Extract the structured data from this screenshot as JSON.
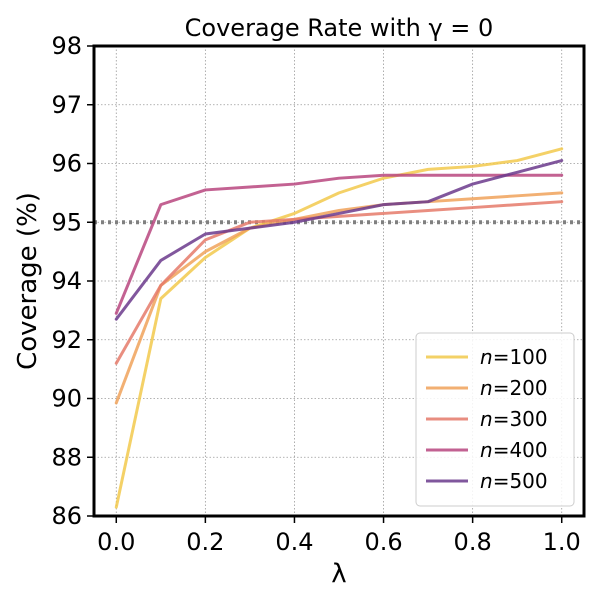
{
  "chart_data": {
    "type": "line",
    "title": "Coverage Rate with γ = 0",
    "xlabel": "λ",
    "ylabel": "Coverage (%)",
    "xlim": [
      -0.05,
      1.05
    ],
    "x_ticks": [
      0.0,
      0.2,
      0.4,
      0.6,
      0.8,
      1.0
    ],
    "x_tick_labels": [
      "0.0",
      "0.2",
      "0.4",
      "0.6",
      "0.8",
      "1.0"
    ],
    "y_ticks": [
      86,
      88,
      90,
      92,
      94,
      95,
      96,
      97,
      98
    ],
    "y_tick_labels": [
      "86",
      "88",
      "90",
      "92",
      "94",
      "95",
      "96",
      "97",
      "98"
    ],
    "grid": true,
    "reference_line": {
      "y": 95,
      "style": "dotted",
      "color": "#808080"
    },
    "legend": {
      "position": "lower-right",
      "prefix": "n",
      "sep": "="
    },
    "x": [
      0.0,
      0.1,
      0.2,
      0.3,
      0.4,
      0.5,
      0.6,
      0.7,
      0.8,
      0.9,
      1.0
    ],
    "series": [
      {
        "name": "100",
        "color": "#f2c94c",
        "values": [
          86.3,
          93.4,
          94.4,
          94.9,
          95.15,
          95.5,
          95.75,
          95.9,
          95.95,
          96.05,
          96.25
        ]
      },
      {
        "name": "200",
        "color": "#f0a25a",
        "values": [
          89.85,
          93.85,
          94.5,
          94.9,
          95.05,
          95.2,
          95.3,
          95.35,
          95.4,
          95.45,
          95.5
        ]
      },
      {
        "name": "300",
        "color": "#e57a6a",
        "values": [
          91.2,
          93.85,
          94.7,
          95.0,
          95.05,
          95.1,
          95.15,
          95.2,
          95.25,
          95.3,
          95.35
        ]
      },
      {
        "name": "400",
        "color": "#b8467f",
        "values": [
          92.9,
          95.3,
          95.55,
          95.6,
          95.65,
          95.75,
          95.8,
          95.8,
          95.8,
          95.8,
          95.8
        ]
      },
      {
        "name": "500",
        "color": "#6b3a8c",
        "values": [
          92.7,
          94.35,
          94.8,
          94.9,
          95.0,
          95.15,
          95.3,
          95.35,
          95.65,
          95.85,
          96.05
        ]
      }
    ]
  }
}
